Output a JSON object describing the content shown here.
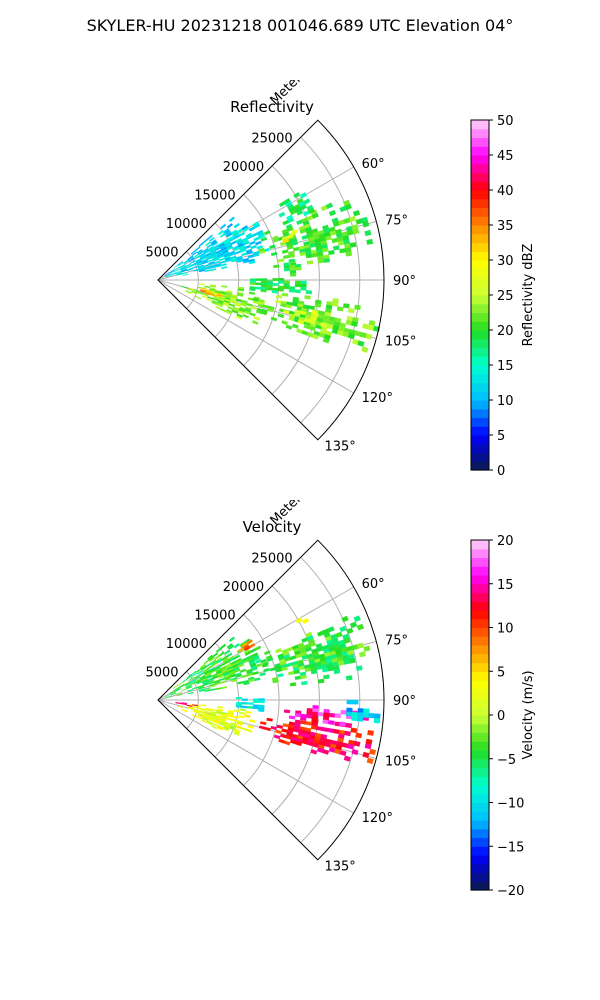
{
  "figure_title": "SKYLER-HU  20231218  001046.689 UTC Elevation 04°",
  "chart_data": [
    {
      "type": "heatmap",
      "projection": "polar-sector",
      "title": "Reflectivity",
      "radial_axis_label": "Meters",
      "range_ticks": [
        "5000",
        "10000",
        "15000",
        "20000",
        "25000"
      ],
      "range_tick_values": [
        5000,
        10000,
        15000,
        20000,
        25000
      ],
      "range_max": 28000,
      "azimuth_ticks": [
        "60°",
        "75°",
        "90°",
        "105°",
        "120°",
        "135°"
      ],
      "azimuth_tick_values": [
        60,
        75,
        90,
        105,
        120,
        135
      ],
      "azimuth_range": [
        45,
        135
      ],
      "grid": true,
      "colorbar": {
        "label": "Reflectivity dBZ",
        "range": [
          0,
          50
        ],
        "ticks": [
          "0",
          "5",
          "10",
          "15",
          "20",
          "25",
          "30",
          "35",
          "40",
          "45",
          "50"
        ],
        "stops": [
          "#0b1a4a",
          "#0000ff",
          "#00bfff",
          "#00ffd0",
          "#22dd22",
          "#ccff33",
          "#ffff00",
          "#ff8800",
          "#ff0000",
          "#ff00ff",
          "#ffd6f8"
        ]
      },
      "echo_regions": [
        {
          "az": [
            50,
            80
          ],
          "range_m": [
            1000,
            14000
          ],
          "value": 12
        },
        {
          "az": [
            66,
            84
          ],
          "range_m": [
            13000,
            27000
          ],
          "value": 21
        },
        {
          "az": [
            70,
            74
          ],
          "range_m": [
            15500,
            18000
          ],
          "value": 29
        },
        {
          "az": [
            88,
            96
          ],
          "range_m": [
            10000,
            19000
          ],
          "value": 19
        },
        {
          "az": [
            95,
            115
          ],
          "range_m": [
            3000,
            13000
          ],
          "value": 23
        },
        {
          "az": [
            100,
            106
          ],
          "range_m": [
            4000,
            8000
          ],
          "value": 33
        },
        {
          "az": [
            96,
            110
          ],
          "range_m": [
            12000,
            27500
          ],
          "value": 22
        },
        {
          "az": [
            101,
            106
          ],
          "range_m": [
            16000,
            22000
          ],
          "value": 26
        },
        {
          "az": [
            80,
            88
          ],
          "range_m": [
            15000,
            18000
          ],
          "value": 20
        },
        {
          "az": [
            58,
            66
          ],
          "range_m": [
            17000,
            21000
          ],
          "value": 18
        }
      ]
    },
    {
      "type": "heatmap",
      "projection": "polar-sector",
      "title": "Velocity",
      "radial_axis_label": "Meters",
      "range_ticks": [
        "5000",
        "10000",
        "15000",
        "20000",
        "25000"
      ],
      "range_tick_values": [
        5000,
        10000,
        15000,
        20000,
        25000
      ],
      "range_max": 28000,
      "azimuth_ticks": [
        "60°",
        "75°",
        "90°",
        "105°",
        "120°",
        "135°"
      ],
      "azimuth_tick_values": [
        60,
        75,
        90,
        105,
        120,
        135
      ],
      "azimuth_range": [
        45,
        135
      ],
      "grid": true,
      "colorbar": {
        "label": "Velocity (m/s)",
        "range": [
          -20,
          20
        ],
        "ticks": [
          "−20",
          "−15",
          "−10",
          "−5",
          "0",
          "5",
          "10",
          "15",
          "20"
        ],
        "stops": [
          "#0b1a4a",
          "#0000ff",
          "#00bfff",
          "#00ffd0",
          "#22dd22",
          "#ccff33",
          "#ffff00",
          "#ff8800",
          "#ff0000",
          "#ff00ff",
          "#ffd6f8"
        ]
      },
      "echo_regions": [
        {
          "az": [
            50,
            80
          ],
          "range_m": [
            1000,
            14000
          ],
          "value": -4
        },
        {
          "az": [
            66,
            84
          ],
          "range_m": [
            13000,
            27000
          ],
          "value": -4
        },
        {
          "az": [
            88,
            96
          ],
          "range_m": [
            9000,
            13000
          ],
          "value": -9
        },
        {
          "az": [
            96,
            116
          ],
          "range_m": [
            2500,
            12000
          ],
          "value": 2
        },
        {
          "az": [
            97,
            109
          ],
          "range_m": [
            13000,
            27500
          ],
          "value": 12
        },
        {
          "az": [
            92,
            98
          ],
          "range_m": [
            15000,
            26000
          ],
          "value": 15
        },
        {
          "az": [
            90,
            96
          ],
          "range_m": [
            22000,
            27500
          ],
          "value": -11
        },
        {
          "az": [
            95,
            100
          ],
          "range_m": [
            1500,
            4500
          ],
          "value": 14
        },
        {
          "az": [
            57,
            60
          ],
          "range_m": [
            11000,
            13500
          ],
          "value": 9
        },
        {
          "az": [
            60,
            63
          ],
          "range_m": [
            19000,
            21000
          ],
          "value": 5
        }
      ]
    }
  ]
}
